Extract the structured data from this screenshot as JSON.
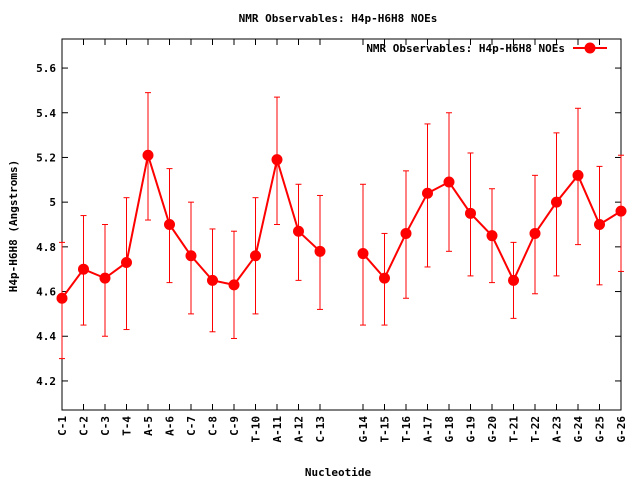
{
  "chart_data": {
    "type": "line",
    "title": "NMR Observables: H4p-H6H8 NOEs",
    "xlabel": "Nucleotide",
    "ylabel": "H4p-H6H8 (Angstroms)",
    "ylim": [
      4.07,
      5.73
    ],
    "yticks": [
      "4.2",
      "4.4",
      "4.6",
      "4.8",
      "5",
      "5.2",
      "5.4",
      "5.6"
    ],
    "ytick_values": [
      4.2,
      4.4,
      4.6,
      4.8,
      5.0,
      5.2,
      5.4,
      5.6
    ],
    "grid": false,
    "legend_position": "top-right",
    "x": [
      1,
      2,
      3,
      4,
      5,
      6,
      7,
      8,
      9,
      10,
      11,
      12,
      13,
      15,
      16,
      17,
      18,
      19,
      20,
      21,
      22,
      23,
      24,
      25,
      26,
      27
    ],
    "xlim": [
      1,
      27
    ],
    "categories": [
      "C-1",
      "C-2",
      "C-3",
      "T-4",
      "A-5",
      "A-6",
      "C-7",
      "C-8",
      "C-9",
      "T-10",
      "A-11",
      "A-12",
      "C-13",
      "G-14",
      "T-15",
      "T-16",
      "A-17",
      "G-18",
      "G-19",
      "G-20",
      "T-21",
      "T-22",
      "A-23",
      "G-24",
      "G-25",
      "G-26"
    ],
    "series": [
      {
        "name": "NMR Observables: H4p-H6H8 NOEs",
        "color": "#ff0000",
        "values": [
          4.57,
          4.7,
          4.66,
          4.73,
          5.21,
          4.9,
          4.76,
          4.65,
          4.63,
          4.76,
          5.19,
          4.87,
          4.78,
          4.77,
          4.66,
          4.86,
          5.04,
          5.09,
          4.95,
          4.85,
          4.65,
          4.86,
          5.0,
          5.12,
          4.9,
          4.96
        ],
        "err_low": [
          4.3,
          4.45,
          4.4,
          4.43,
          4.92,
          4.64,
          4.5,
          4.42,
          4.39,
          4.5,
          4.9,
          4.65,
          4.52,
          4.45,
          4.45,
          4.57,
          4.71,
          4.78,
          4.67,
          4.64,
          4.48,
          4.59,
          4.67,
          4.81,
          4.63,
          4.69
        ],
        "err_high": [
          4.82,
          4.94,
          4.9,
          5.02,
          5.49,
          5.15,
          5.0,
          4.88,
          4.87,
          5.02,
          5.47,
          5.08,
          5.03,
          5.08,
          4.86,
          5.14,
          5.35,
          5.4,
          5.22,
          5.06,
          4.82,
          5.12,
          5.31,
          5.42,
          5.16,
          5.21
        ]
      }
    ]
  }
}
